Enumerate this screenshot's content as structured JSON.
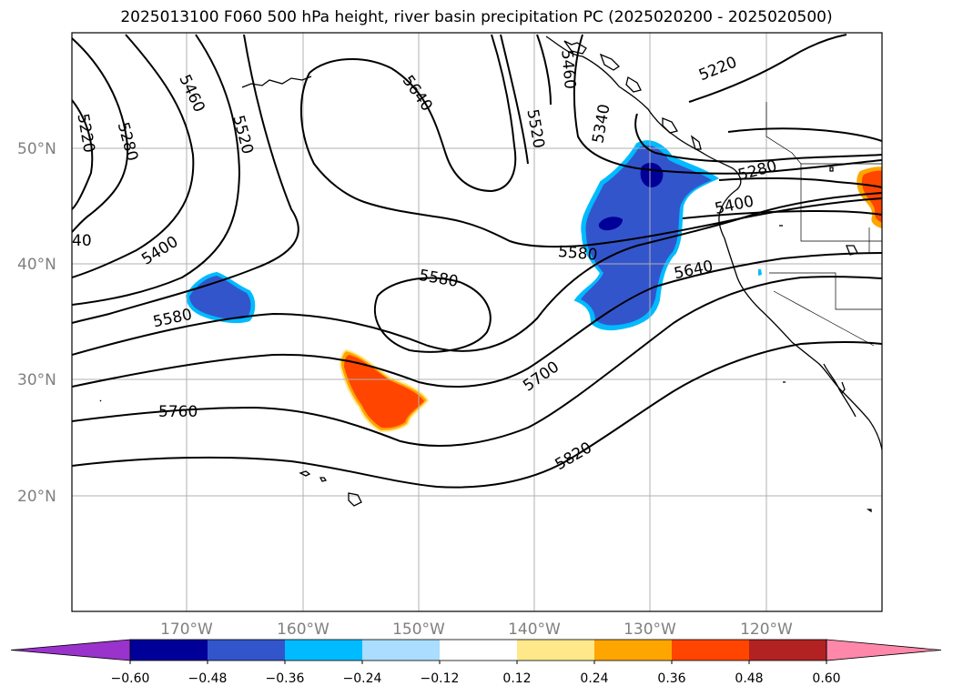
{
  "title": "2025013100 F060 500 hPa height, river basin precipitation PC (2025020200 - 2025020500)",
  "map": {
    "lat_labels": [
      "50°N",
      "40°N",
      "30°N",
      "20°N"
    ],
    "lon_labels": [
      "170°W",
      "160°W",
      "150°W",
      "140°W",
      "130°W",
      "120°W"
    ],
    "contour_labels": [
      "5220",
      "5280",
      "5460",
      "5520",
      "5640",
      "5520",
      "5460",
      "5340",
      "5220",
      "5280",
      "5400",
      "5400",
      "40",
      "5580",
      "5580",
      "5580",
      "5640",
      "5700",
      "5760",
      "5820"
    ],
    "contour_line_color": "#000000",
    "coastline_color": "#000000",
    "grid_color": "#b0b0b0"
  },
  "colorbar": {
    "colors": [
      "#9933cc",
      "#000099",
      "#3355cc",
      "#00bbff",
      "#aaddff",
      "#ffffff",
      "#ffe88a",
      "#ffa500",
      "#ff4500",
      "#b22222",
      "#ff88aa"
    ],
    "tick_labels": [
      "−0.60",
      "−0.48",
      "−0.36",
      "−0.24",
      "−0.12",
      "0.12",
      "0.24",
      "0.36",
      "0.48",
      "0.60"
    ]
  }
}
